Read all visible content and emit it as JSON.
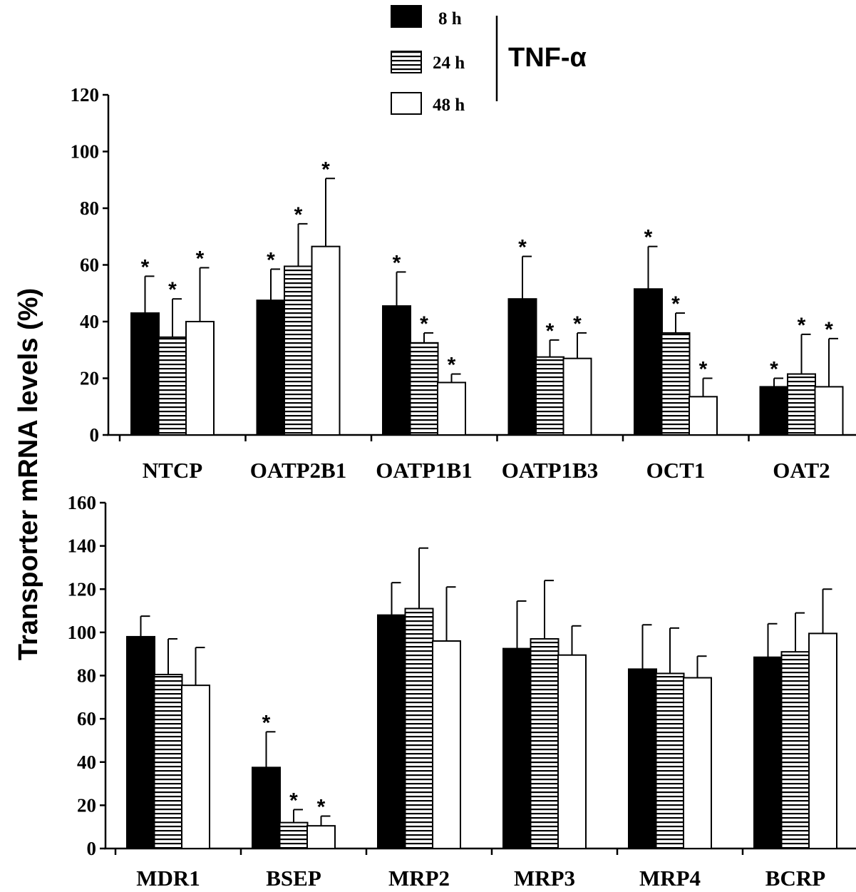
{
  "chart_data": {
    "type": "bar",
    "ylabel": "Transporter mRNA levels (%)",
    "treatment_label": "TNF-α",
    "series": [
      {
        "name": "8 h",
        "fill": "solid"
      },
      {
        "name": "24 h",
        "fill": "striped"
      },
      {
        "name": "48 h",
        "fill": "empty"
      }
    ],
    "panels": [
      {
        "categories": [
          "NTCP",
          "OATP2B1",
          "OATP1B1",
          "OATP1B3",
          "OCT1",
          "OAT2"
        ],
        "ylim": [
          0,
          120
        ],
        "yticks": [
          0,
          20,
          40,
          60,
          80,
          100,
          120
        ],
        "values": [
          [
            43,
            34.5,
            40
          ],
          [
            47.5,
            59.5,
            66.5
          ],
          [
            45.5,
            32.5,
            18.5
          ],
          [
            48,
            27.5,
            27
          ],
          [
            51.5,
            36,
            13.5
          ],
          [
            17,
            21.5,
            17
          ]
        ],
        "errors": [
          [
            13,
            13.5,
            19
          ],
          [
            11,
            15,
            24
          ],
          [
            12,
            3.5,
            3
          ],
          [
            15,
            6,
            9
          ],
          [
            15,
            7,
            6.5
          ],
          [
            3,
            14,
            17
          ]
        ],
        "significant": [
          [
            true,
            true,
            true
          ],
          [
            true,
            true,
            true
          ],
          [
            true,
            true,
            true
          ],
          [
            true,
            true,
            true
          ],
          [
            true,
            true,
            true
          ],
          [
            true,
            true,
            true
          ]
        ]
      },
      {
        "categories": [
          "MDR1",
          "BSEP",
          "MRP2",
          "MRP3",
          "MRP4",
          "BCRP"
        ],
        "ylim": [
          0,
          160
        ],
        "yticks": [
          0,
          20,
          40,
          60,
          80,
          100,
          120,
          140,
          160
        ],
        "values": [
          [
            98,
            80.5,
            75.5
          ],
          [
            37.5,
            12,
            10.5
          ],
          [
            108,
            111,
            96
          ],
          [
            92.5,
            97,
            89.5
          ],
          [
            83,
            81,
            79
          ],
          [
            88.5,
            91,
            99.5
          ]
        ],
        "errors": [
          [
            9.5,
            16.5,
            17.5
          ],
          [
            16.5,
            6,
            4.5
          ],
          [
            15,
            28,
            25
          ],
          [
            22,
            27,
            13.5
          ],
          [
            20.5,
            21,
            10
          ],
          [
            15.5,
            18,
            20.5
          ]
        ],
        "significant": [
          [
            false,
            false,
            false
          ],
          [
            true,
            true,
            true
          ],
          [
            false,
            false,
            false
          ],
          [
            false,
            false,
            false
          ],
          [
            false,
            false,
            false
          ],
          [
            false,
            false,
            false
          ]
        ]
      }
    ]
  }
}
